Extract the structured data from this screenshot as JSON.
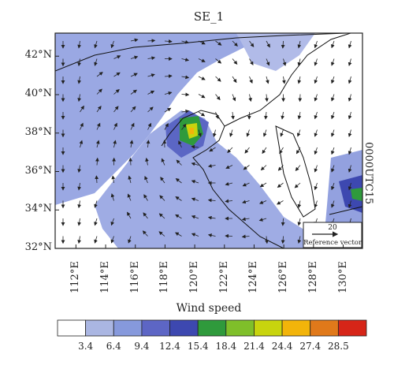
{
  "title": "SE_1",
  "time_label": "0000UTC15",
  "map": {
    "lat_labels": [
      "42°N",
      "40°N",
      "38°N",
      "36°N",
      "34°N",
      "32°N"
    ],
    "lon_labels": [
      "112°E",
      "114°E",
      "116°E",
      "118°E",
      "120°E",
      "122°E",
      "124°E",
      "126°E",
      "128°E",
      "130°E"
    ],
    "lat_range": [
      32,
      43.2
    ],
    "lon_range": [
      110.6,
      131.3
    ],
    "reference_vector": {
      "value": "20",
      "label": "Reference vector"
    },
    "colors": {
      "border": "#000000",
      "coast": "#111111"
    }
  },
  "colorbar": {
    "title": "Wind speed",
    "levels": [
      "3.4",
      "6.4",
      "9.4",
      "12.4",
      "15.4",
      "18.4",
      "21.4",
      "24.4",
      "27.4",
      "28.5"
    ],
    "colors": [
      "#ffffff",
      "#aab6e2",
      "#8699dc",
      "#5d66c5",
      "#3d48b0",
      "#2f9a3c",
      "#7fbf2a",
      "#c8d40e",
      "#f2b40a",
      "#e0791a",
      "#d62518"
    ]
  }
}
